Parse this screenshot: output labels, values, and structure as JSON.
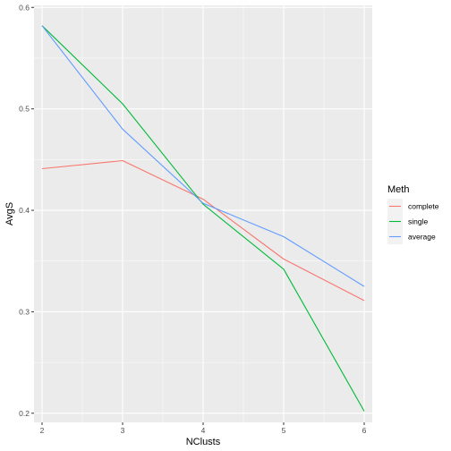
{
  "chart_data": {
    "type": "line",
    "xlabel": "NClusts",
    "ylabel": "AvgS",
    "x": [
      2,
      3,
      4,
      5,
      6
    ],
    "xlim": [
      1.9,
      6.1
    ],
    "ylim": [
      0.191,
      0.602
    ],
    "xticks": [
      2,
      3,
      4,
      5,
      6
    ],
    "yticks": [
      0.2,
      0.3,
      0.4,
      0.5,
      0.6
    ],
    "xtick_labels": [
      "2",
      "3",
      "4",
      "5",
      "6"
    ],
    "ytick_labels": [
      "0.2",
      "0.3",
      "0.4",
      "0.5",
      "0.6"
    ],
    "grid": true,
    "legend": {
      "title": "Meth",
      "position": "right"
    },
    "series": [
      {
        "name": "complete",
        "color": "#F8766D",
        "values": [
          0.441,
          0.449,
          0.411,
          0.352,
          0.311
        ]
      },
      {
        "name": "single",
        "color": "#00BA38",
        "values": [
          0.582,
          0.505,
          0.406,
          0.342,
          0.202
        ]
      },
      {
        "name": "average",
        "color": "#619CFF",
        "values": [
          0.582,
          0.48,
          0.407,
          0.374,
          0.325
        ]
      }
    ]
  }
}
